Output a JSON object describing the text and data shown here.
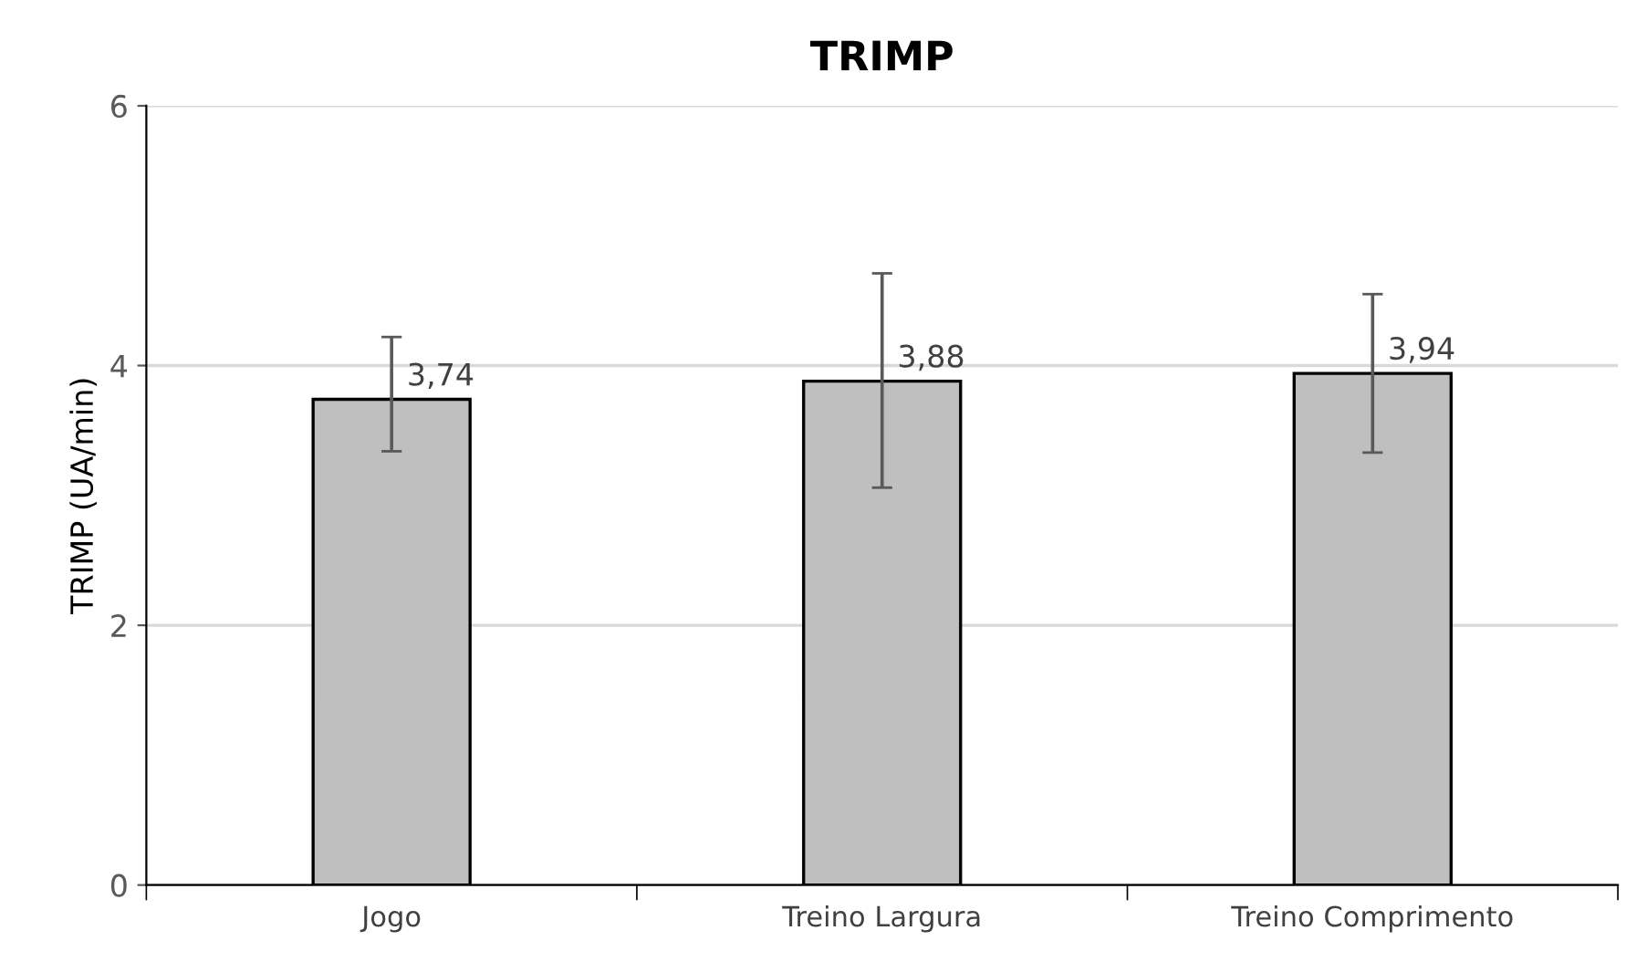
{
  "chart_data": {
    "type": "bar",
    "title": "TRIMP",
    "ylabel": "TRIMP (UA/min)",
    "categories": [
      "Jogo",
      "Treino Largura",
      "Treino Comprimento"
    ],
    "values": [
      3.74,
      3.88,
      3.94
    ],
    "color": "#bfbfbf",
    "errors": [
      [
        3.34,
        4.22
      ],
      [
        3.06,
        4.71
      ],
      [
        3.33,
        4.55
      ]
    ],
    "value_labels": [
      "3,74",
      "3,88",
      "3,94"
    ],
    "ylim": [
      0,
      6
    ],
    "yticks": [
      0,
      2,
      4,
      6
    ],
    "grid": "y",
    "legend": false
  }
}
